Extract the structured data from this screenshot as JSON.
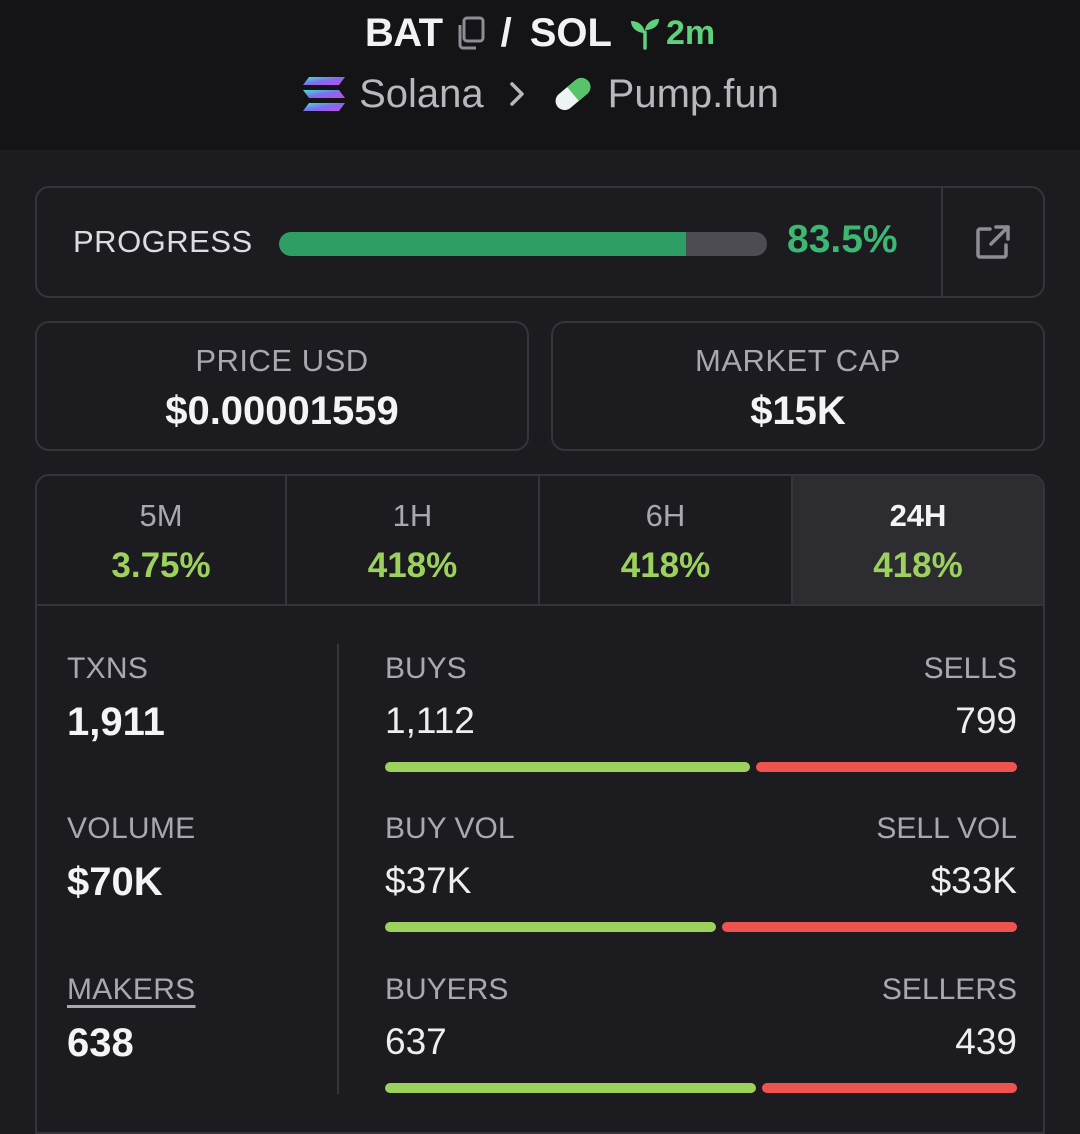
{
  "header": {
    "base_token": "BAT",
    "separator": "/",
    "quote_token": "SOL",
    "age": "2m",
    "chain": "Solana",
    "dex": "Pump.fun"
  },
  "progress": {
    "label": "PROGRESS",
    "percent_text": "83.5%",
    "fraction": 0.835,
    "color": "#2f9e64"
  },
  "stats": {
    "price_label": "PRICE USD",
    "price_value": "$0.00001559",
    "mcap_label": "MARKET CAP",
    "mcap_value": "$15K"
  },
  "tabs": [
    {
      "label": "5M",
      "change": "3.75%",
      "active": false
    },
    {
      "label": "1H",
      "change": "418%",
      "active": false
    },
    {
      "label": "6H",
      "change": "418%",
      "active": false
    },
    {
      "label": "24H",
      "change": "418%",
      "active": true
    }
  ],
  "left_stats": {
    "txns_label": "TXNS",
    "txns_value": "1,911",
    "volume_label": "VOLUME",
    "volume_value": "$70K",
    "makers_label": "MAKERS",
    "makers_value": "638"
  },
  "splits": [
    {
      "left_label": "BUYS",
      "right_label": "SELLS",
      "left_value": "1,112",
      "right_value": "799",
      "left_fraction": 0.582
    },
    {
      "left_label": "BUY VOL",
      "right_label": "SELL VOL",
      "left_value": "$37K",
      "right_value": "$33K",
      "left_fraction": 0.528
    },
    {
      "left_label": "BUYERS",
      "right_label": "SELLERS",
      "left_value": "637",
      "right_value": "439",
      "left_fraction": 0.592
    }
  ],
  "colors": {
    "buy": "#9cd15e",
    "sell": "#ef5350",
    "positive": "#9cd15e"
  }
}
